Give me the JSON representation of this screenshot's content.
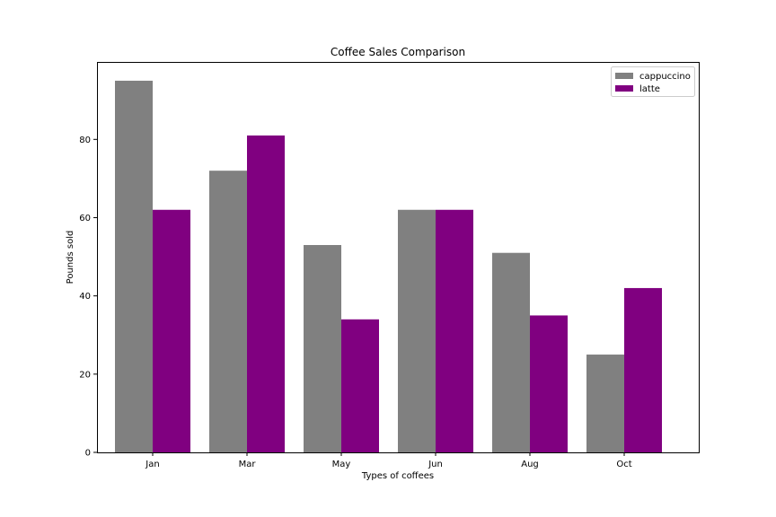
{
  "chart_data": {
    "type": "bar",
    "title": "Coffee Sales Comparison",
    "xlabel": "Types of coffees",
    "ylabel": "Pounds sold",
    "categories": [
      "Jan",
      "Mar",
      "May",
      "Jun",
      "Aug",
      "Oct"
    ],
    "series": [
      {
        "name": "cappuccino",
        "color": "#808080",
        "values": [
          95,
          72,
          53,
          62,
          51,
          25
        ]
      },
      {
        "name": "latte",
        "color": "#800080",
        "values": [
          62,
          81,
          34,
          62,
          35,
          42
        ]
      }
    ],
    "ylim": [
      0,
      99.8
    ],
    "yticks": [
      0,
      20,
      40,
      60,
      80
    ],
    "grid": false,
    "legend_position": "top-right"
  }
}
